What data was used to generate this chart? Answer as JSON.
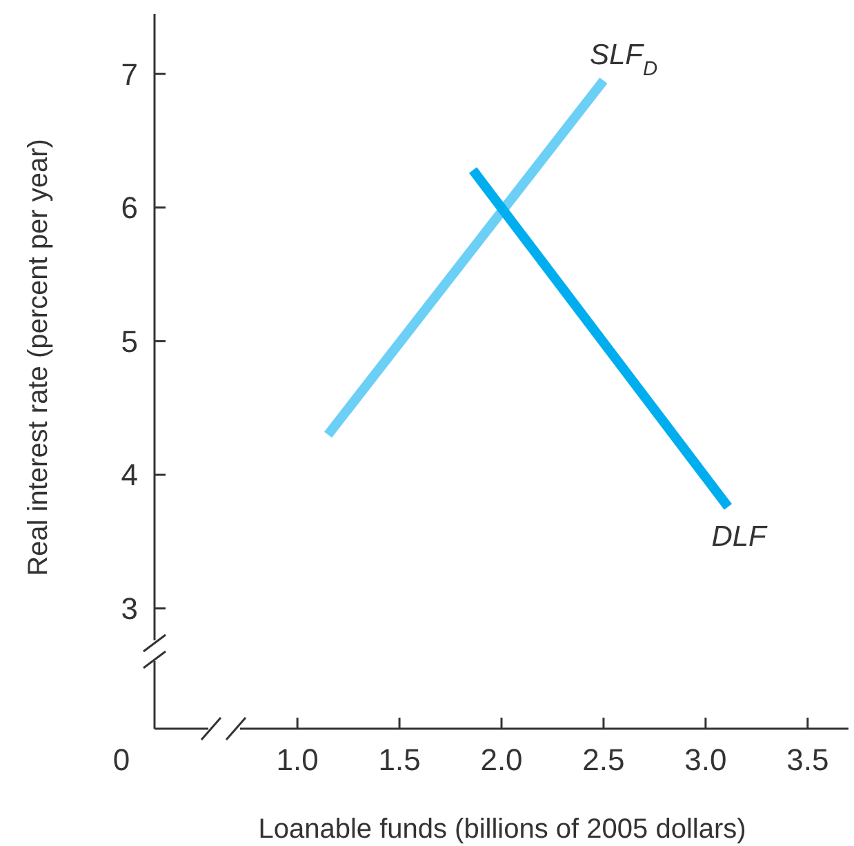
{
  "chart_data": {
    "type": "line",
    "xlabel": "Loanable funds (billions of 2005 dollars)",
    "ylabel": "Real interest rate (percent per year)",
    "xlim": [
      0.3,
      3.7
    ],
    "ylim": [
      2.1,
      7.45
    ],
    "annotations": [
      "0"
    ],
    "xticks": [
      {
        "value": 1,
        "label": "1.0"
      },
      {
        "value": 1.5,
        "label": "1.5"
      },
      {
        "value": 2,
        "label": "2.0"
      },
      {
        "value": 2.5,
        "label": "2.5"
      },
      {
        "value": 3,
        "label": "3.0"
      },
      {
        "value": 3.5,
        "label": "3.5"
      }
    ],
    "yticks": [
      3,
      4,
      5,
      6,
      7
    ],
    "series": [
      {
        "name": "SLF$_{D}$",
        "color": "#6ccff6",
        "x": [
          1.15,
          2.5
        ],
        "values": [
          4.3,
          6.95
        ]
      },
      {
        "name": "DLF",
        "color": "#00aeef",
        "x": [
          1.86,
          3.11
        ],
        "values": [
          6.28,
          3.76
        ]
      }
    ],
    "marker": "none",
    "line_style": "solid",
    "grid": false
  }
}
